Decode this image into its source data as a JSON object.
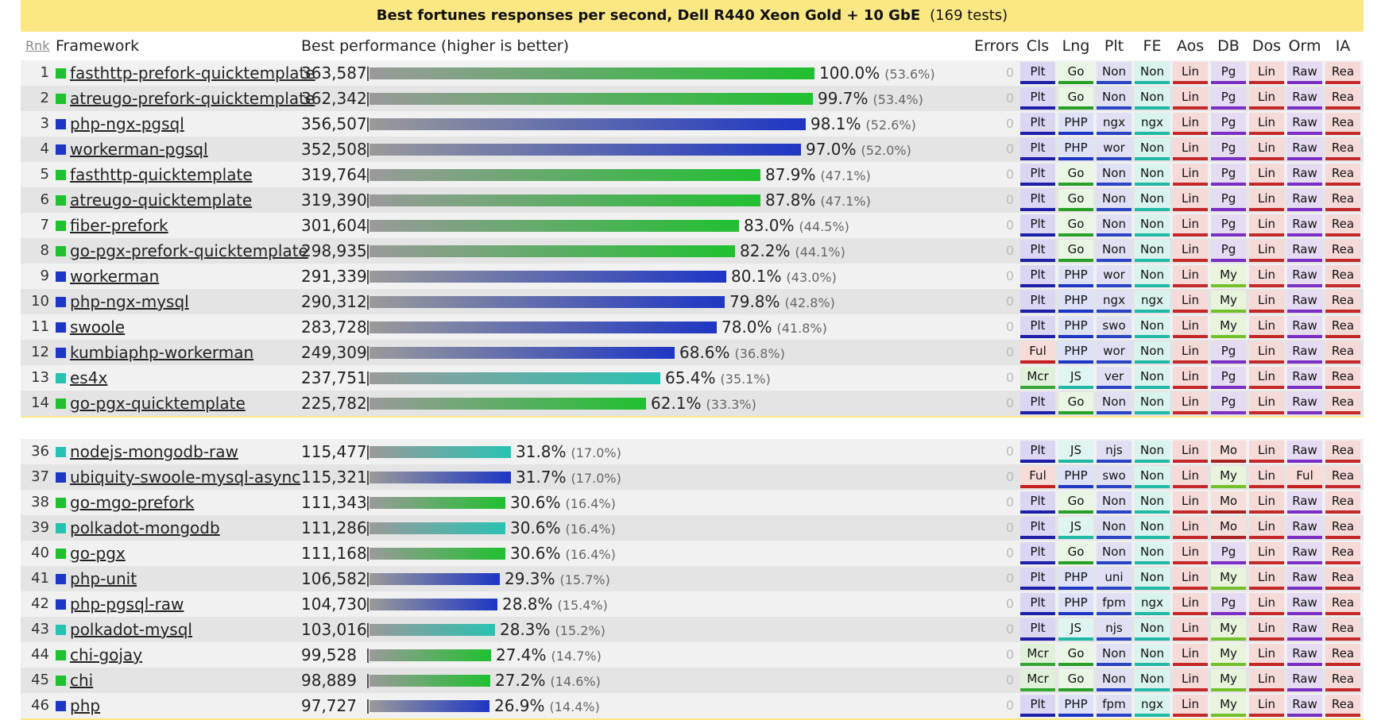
{
  "title": "Best fortunes responses per second, Dell R440 Xeon Gold + 10 GbE",
  "tests_count": "(169 tests)",
  "headers": {
    "rank": "Rnk",
    "framework": "Framework",
    "performance": "Best performance (higher is better)",
    "errors": "Errors",
    "cls": "Cls",
    "lng": "Lng",
    "plt": "Plt",
    "fe": "FE",
    "aos": "Aos",
    "db": "DB",
    "dos": "Dos",
    "orm": "Orm",
    "ia": "IA"
  },
  "lang_colors": {
    "Go": "#20c030",
    "PHP": "#1e36c4",
    "JS": "#29c2b1"
  },
  "badge_colors": {
    "Plt": {
      "bg": "#dad6f4",
      "line": "#1d1fa8"
    },
    "Ful": {
      "bg": "#f8dcd8",
      "line": "#c41e1e"
    },
    "Mcr": {
      "bg": "#dff1d8",
      "line": "#35a635"
    },
    "Go": {
      "bg": "#e9f6e3",
      "line": "#28a028"
    },
    "PHP": {
      "bg": "#dde2f8",
      "line": "#1e36c4"
    },
    "JS": {
      "bg": "#e0f5f1",
      "line": "#21b7a5"
    },
    "plt": {
      "bg": "#e0e0f4",
      "line": "#2a44c4"
    },
    "fe": {
      "bg": "#d9f3ee",
      "line": "#22b8a6"
    },
    "aos": {
      "bg": "#f6dad8",
      "line": "#c42828"
    },
    "Pg": {
      "bg": "#e5dbf2",
      "line": "#7a2ec2"
    },
    "My": {
      "bg": "#e8f4dc",
      "line": "#74c02a"
    },
    "Mo": {
      "bg": "#f6e0dc",
      "line": "#a82222"
    },
    "dos": {
      "bg": "#f6dad8",
      "line": "#c42828"
    },
    "orm": {
      "bg": "#e5dbf2",
      "line": "#7a2ec2"
    },
    "ia": {
      "bg": "#f6dad8",
      "line": "#c42828"
    }
  },
  "top_rows": [
    {
      "rank": "1",
      "name": "fasthttp-prefork-quicktemplate",
      "rps": "363,587",
      "pct": 100.0,
      "pct_label": "100.0%",
      "sub": "(53.6%)",
      "lang": "Go",
      "errors": "0",
      "cls": "Plt",
      "lng": "Go",
      "plt": "Non",
      "fe": "Non",
      "aos": "Lin",
      "db": "Pg",
      "dos": "Lin",
      "orm": "Raw",
      "ia": "Rea"
    },
    {
      "rank": "2",
      "name": "atreugo-prefork-quicktemplate",
      "rps": "362,342",
      "pct": 99.7,
      "pct_label": "99.7%",
      "sub": "(53.4%)",
      "lang": "Go",
      "errors": "0",
      "cls": "Plt",
      "lng": "Go",
      "plt": "Non",
      "fe": "Non",
      "aos": "Lin",
      "db": "Pg",
      "dos": "Lin",
      "orm": "Raw",
      "ia": "Rea"
    },
    {
      "rank": "3",
      "name": "php-ngx-pgsql",
      "rps": "356,507",
      "pct": 98.1,
      "pct_label": "98.1%",
      "sub": "(52.6%)",
      "lang": "PHP",
      "errors": "0",
      "cls": "Plt",
      "lng": "PHP",
      "plt": "ngx",
      "fe": "ngx",
      "aos": "Lin",
      "db": "Pg",
      "dos": "Lin",
      "orm": "Raw",
      "ia": "Rea"
    },
    {
      "rank": "4",
      "name": "workerman-pgsql",
      "rps": "352,508",
      "pct": 97.0,
      "pct_label": "97.0%",
      "sub": "(52.0%)",
      "lang": "PHP",
      "errors": "0",
      "cls": "Plt",
      "lng": "PHP",
      "plt": "wor",
      "fe": "Non",
      "aos": "Lin",
      "db": "Pg",
      "dos": "Lin",
      "orm": "Raw",
      "ia": "Rea"
    },
    {
      "rank": "5",
      "name": "fasthttp-quicktemplate",
      "rps": "319,764",
      "pct": 87.9,
      "pct_label": "87.9%",
      "sub": "(47.1%)",
      "lang": "Go",
      "errors": "0",
      "cls": "Plt",
      "lng": "Go",
      "plt": "Non",
      "fe": "Non",
      "aos": "Lin",
      "db": "Pg",
      "dos": "Lin",
      "orm": "Raw",
      "ia": "Rea"
    },
    {
      "rank": "6",
      "name": "atreugo-quicktemplate",
      "rps": "319,390",
      "pct": 87.8,
      "pct_label": "87.8%",
      "sub": "(47.1%)",
      "lang": "Go",
      "errors": "0",
      "cls": "Plt",
      "lng": "Go",
      "plt": "Non",
      "fe": "Non",
      "aos": "Lin",
      "db": "Pg",
      "dos": "Lin",
      "orm": "Raw",
      "ia": "Rea"
    },
    {
      "rank": "7",
      "name": "fiber-prefork",
      "rps": "301,604",
      "pct": 83.0,
      "pct_label": "83.0%",
      "sub": "(44.5%)",
      "lang": "Go",
      "errors": "0",
      "cls": "Plt",
      "lng": "Go",
      "plt": "Non",
      "fe": "Non",
      "aos": "Lin",
      "db": "Pg",
      "dos": "Lin",
      "orm": "Raw",
      "ia": "Rea"
    },
    {
      "rank": "8",
      "name": "go-pgx-prefork-quicktemplate",
      "rps": "298,935",
      "pct": 82.2,
      "pct_label": "82.2%",
      "sub": "(44.1%)",
      "lang": "Go",
      "errors": "0",
      "cls": "Plt",
      "lng": "Go",
      "plt": "Non",
      "fe": "Non",
      "aos": "Lin",
      "db": "Pg",
      "dos": "Lin",
      "orm": "Raw",
      "ia": "Rea"
    },
    {
      "rank": "9",
      "name": "workerman",
      "rps": "291,339",
      "pct": 80.1,
      "pct_label": "80.1%",
      "sub": "(43.0%)",
      "lang": "PHP",
      "errors": "0",
      "cls": "Plt",
      "lng": "PHP",
      "plt": "wor",
      "fe": "Non",
      "aos": "Lin",
      "db": "My",
      "dos": "Lin",
      "orm": "Raw",
      "ia": "Rea"
    },
    {
      "rank": "10",
      "name": "php-ngx-mysql",
      "rps": "290,312",
      "pct": 79.8,
      "pct_label": "79.8%",
      "sub": "(42.8%)",
      "lang": "PHP",
      "errors": "0",
      "cls": "Plt",
      "lng": "PHP",
      "plt": "ngx",
      "fe": "ngx",
      "aos": "Lin",
      "db": "My",
      "dos": "Lin",
      "orm": "Raw",
      "ia": "Rea"
    },
    {
      "rank": "11",
      "name": "swoole",
      "rps": "283,728",
      "pct": 78.0,
      "pct_label": "78.0%",
      "sub": "(41.8%)",
      "lang": "PHP",
      "errors": "0",
      "cls": "Plt",
      "lng": "PHP",
      "plt": "swo",
      "fe": "Non",
      "aos": "Lin",
      "db": "My",
      "dos": "Lin",
      "orm": "Raw",
      "ia": "Rea"
    },
    {
      "rank": "12",
      "name": "kumbiaphp-workerman",
      "rps": "249,309",
      "pct": 68.6,
      "pct_label": "68.6%",
      "sub": "(36.8%)",
      "lang": "PHP",
      "errors": "0",
      "cls": "Ful",
      "lng": "PHP",
      "plt": "wor",
      "fe": "Non",
      "aos": "Lin",
      "db": "Pg",
      "dos": "Lin",
      "orm": "Raw",
      "ia": "Rea"
    },
    {
      "rank": "13",
      "name": "es4x",
      "rps": "237,751",
      "pct": 65.4,
      "pct_label": "65.4%",
      "sub": "(35.1%)",
      "lang": "JS",
      "errors": "0",
      "cls": "Mcr",
      "lng": "JS",
      "plt": "ver",
      "fe": "Non",
      "aos": "Lin",
      "db": "Pg",
      "dos": "Lin",
      "orm": "Raw",
      "ia": "Rea"
    },
    {
      "rank": "14",
      "name": "go-pgx-quicktemplate",
      "rps": "225,782",
      "pct": 62.1,
      "pct_label": "62.1%",
      "sub": "(33.3%)",
      "lang": "Go",
      "errors": "0",
      "cls": "Plt",
      "lng": "Go",
      "plt": "Non",
      "fe": "Non",
      "aos": "Lin",
      "db": "Pg",
      "dos": "Lin",
      "orm": "Raw",
      "ia": "Rea"
    }
  ],
  "bottom_rows": [
    {
      "rank": "36",
      "name": "nodejs-mongodb-raw",
      "rps": "115,477",
      "pct": 31.8,
      "pct_label": "31.8%",
      "sub": "(17.0%)",
      "lang": "JS",
      "errors": "0",
      "cls": "Plt",
      "lng": "JS",
      "plt": "njs",
      "fe": "Non",
      "aos": "Lin",
      "db": "Mo",
      "dos": "Lin",
      "orm": "Raw",
      "ia": "Rea"
    },
    {
      "rank": "37",
      "name": "ubiquity-swoole-mysql-async",
      "rps": "115,321",
      "pct": 31.7,
      "pct_label": "31.7%",
      "sub": "(17.0%)",
      "lang": "PHP",
      "errors": "0",
      "cls": "Ful",
      "lng": "PHP",
      "plt": "swo",
      "fe": "Non",
      "aos": "Lin",
      "db": "My",
      "dos": "Lin",
      "orm": "Ful",
      "ia": "Rea"
    },
    {
      "rank": "38",
      "name": "go-mgo-prefork",
      "rps": "111,343",
      "pct": 30.6,
      "pct_label": "30.6%",
      "sub": "(16.4%)",
      "lang": "Go",
      "errors": "0",
      "cls": "Plt",
      "lng": "Go",
      "plt": "Non",
      "fe": "Non",
      "aos": "Lin",
      "db": "Mo",
      "dos": "Lin",
      "orm": "Raw",
      "ia": "Rea"
    },
    {
      "rank": "39",
      "name": "polkadot-mongodb",
      "rps": "111,286",
      "pct": 30.6,
      "pct_label": "30.6%",
      "sub": "(16.4%)",
      "lang": "JS",
      "errors": "0",
      "cls": "Plt",
      "lng": "JS",
      "plt": "Non",
      "fe": "Non",
      "aos": "Lin",
      "db": "Mo",
      "dos": "Lin",
      "orm": "Raw",
      "ia": "Rea"
    },
    {
      "rank": "40",
      "name": "go-pgx",
      "rps": "111,168",
      "pct": 30.6,
      "pct_label": "30.6%",
      "sub": "(16.4%)",
      "lang": "Go",
      "errors": "0",
      "cls": "Plt",
      "lng": "Go",
      "plt": "Non",
      "fe": "Non",
      "aos": "Lin",
      "db": "Pg",
      "dos": "Lin",
      "orm": "Raw",
      "ia": "Rea"
    },
    {
      "rank": "41",
      "name": "php-unit",
      "rps": "106,582",
      "pct": 29.3,
      "pct_label": "29.3%",
      "sub": "(15.7%)",
      "lang": "PHP",
      "errors": "0",
      "cls": "Plt",
      "lng": "PHP",
      "plt": "uni",
      "fe": "Non",
      "aos": "Lin",
      "db": "My",
      "dos": "Lin",
      "orm": "Raw",
      "ia": "Rea"
    },
    {
      "rank": "42",
      "name": "php-pgsql-raw",
      "rps": "104,730",
      "pct": 28.8,
      "pct_label": "28.8%",
      "sub": "(15.4%)",
      "lang": "PHP",
      "errors": "0",
      "cls": "Plt",
      "lng": "PHP",
      "plt": "fpm",
      "fe": "ngx",
      "aos": "Lin",
      "db": "Pg",
      "dos": "Lin",
      "orm": "Raw",
      "ia": "Rea"
    },
    {
      "rank": "43",
      "name": "polkadot-mysql",
      "rps": "103,016",
      "pct": 28.3,
      "pct_label": "28.3%",
      "sub": "(15.2%)",
      "lang": "JS",
      "errors": "0",
      "cls": "Plt",
      "lng": "JS",
      "plt": "njs",
      "fe": "Non",
      "aos": "Lin",
      "db": "My",
      "dos": "Lin",
      "orm": "Raw",
      "ia": "Rea"
    },
    {
      "rank": "44",
      "name": "chi-gojay",
      "rps": "99,528",
      "pct": 27.4,
      "pct_label": "27.4%",
      "sub": "(14.7%)",
      "lang": "Go",
      "errors": "0",
      "cls": "Mcr",
      "lng": "Go",
      "plt": "Non",
      "fe": "Non",
      "aos": "Lin",
      "db": "My",
      "dos": "Lin",
      "orm": "Raw",
      "ia": "Rea"
    },
    {
      "rank": "45",
      "name": "chi",
      "rps": "98,889",
      "pct": 27.2,
      "pct_label": "27.2%",
      "sub": "(14.6%)",
      "lang": "Go",
      "errors": "0",
      "cls": "Mcr",
      "lng": "Go",
      "plt": "Non",
      "fe": "Non",
      "aos": "Lin",
      "db": "My",
      "dos": "Lin",
      "orm": "Raw",
      "ia": "Rea"
    },
    {
      "rank": "46",
      "name": "php",
      "rps": "97,727",
      "pct": 26.9,
      "pct_label": "26.9%",
      "sub": "(14.4%)",
      "lang": "PHP",
      "errors": "0",
      "cls": "Plt",
      "lng": "PHP",
      "plt": "fpm",
      "fe": "ngx",
      "aos": "Lin",
      "db": "My",
      "dos": "Lin",
      "orm": "Raw",
      "ia": "Rea"
    }
  ]
}
